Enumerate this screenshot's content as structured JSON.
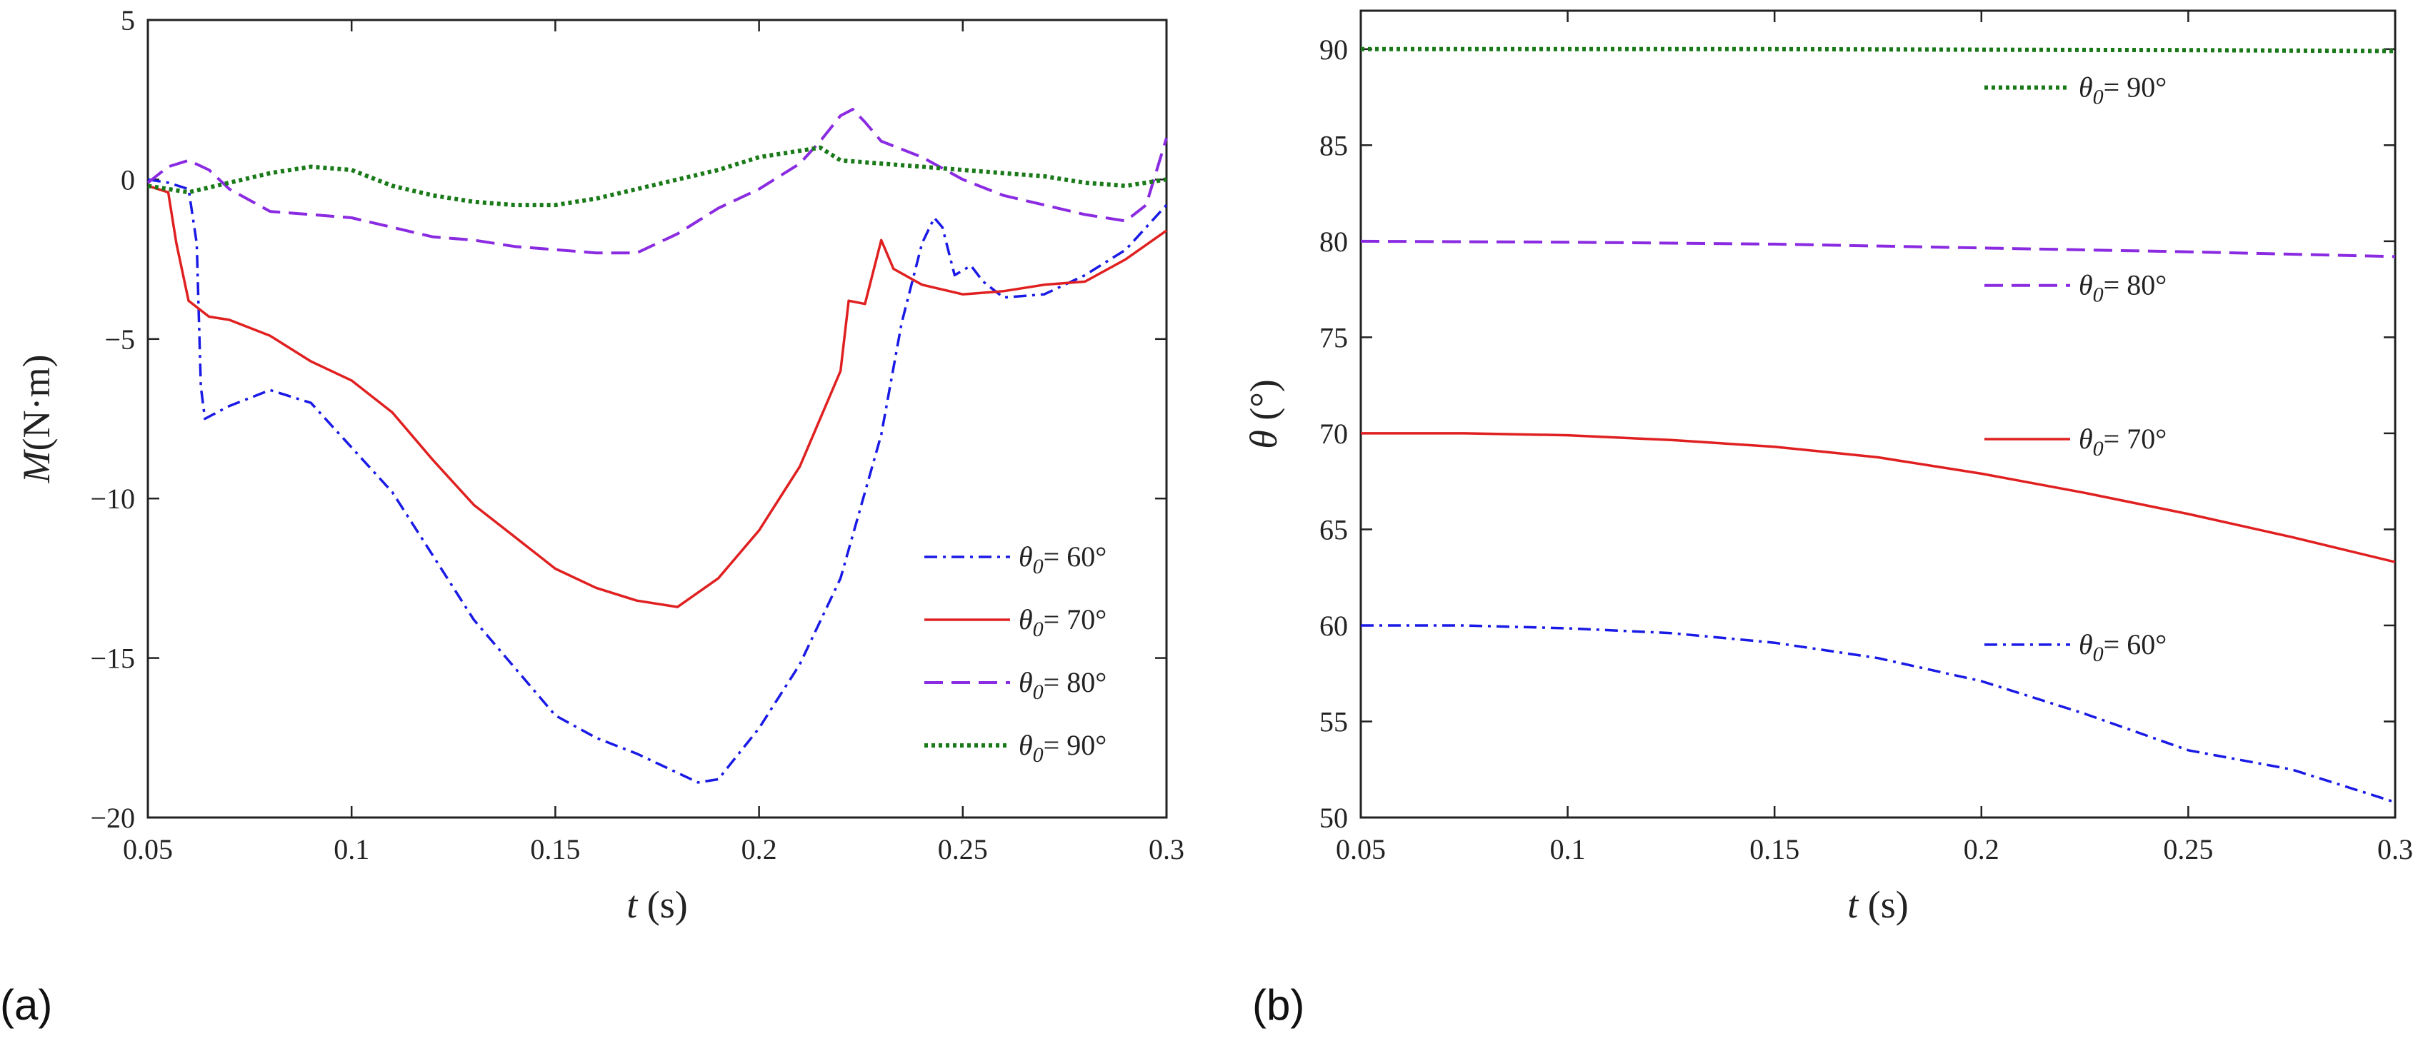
{
  "colors": {
    "s60": "#1a1ae6",
    "s70": "#e02020",
    "s80": "#8a2be2",
    "s90": "#1a7a1a",
    "axis": "#222222"
  },
  "chart_data": [
    {
      "type": "line",
      "panel_label": "(a)",
      "xlabel": {
        "var": "t",
        "unit": " (s)"
      },
      "ylabel": {
        "var": "M",
        "unit": "(N·m)"
      },
      "xlim": [
        0.05,
        0.3
      ],
      "ylim": [
        -20,
        5
      ],
      "xticks": [
        0.05,
        0.1,
        0.15,
        0.2,
        0.25,
        0.3
      ],
      "xtick_labels": [
        "0.05",
        "0.1",
        "0.15",
        "0.2",
        "0.25",
        "0.3"
      ],
      "yticks": [
        -20,
        -15,
        -10,
        -5,
        0,
        5
      ],
      "ytick_labels": [
        "−20",
        "−15",
        "−10",
        "−5",
        "0",
        "5"
      ],
      "legend_position": "lower-right",
      "series": [
        {
          "name": "60°",
          "style": "dashdot",
          "color_key": "s60",
          "x": [
            0.05,
            0.055,
            0.06,
            0.062,
            0.063,
            0.064,
            0.07,
            0.08,
            0.09,
            0.1,
            0.11,
            0.12,
            0.13,
            0.14,
            0.15,
            0.16,
            0.17,
            0.18,
            0.185,
            0.19,
            0.2,
            0.21,
            0.22,
            0.23,
            0.235,
            0.24,
            0.243,
            0.245,
            0.248,
            0.252,
            0.255,
            0.26,
            0.27,
            0.28,
            0.29,
            0.3
          ],
          "y": [
            0,
            -0.1,
            -0.3,
            -2,
            -6.5,
            -7.5,
            -7.1,
            -6.6,
            -7,
            -8.4,
            -9.8,
            -11.8,
            -13.8,
            -15.3,
            -16.8,
            -17.5,
            -18,
            -18.6,
            -18.9,
            -18.8,
            -17.2,
            -15.2,
            -12.5,
            -8,
            -4.5,
            -2,
            -1.2,
            -1.5,
            -3,
            -2.7,
            -3.2,
            -3.7,
            -3.6,
            -3,
            -2.2,
            -0.8
          ]
        },
        {
          "name": "70°",
          "style": "solid",
          "color_key": "s70",
          "x": [
            0.05,
            0.055,
            0.057,
            0.06,
            0.065,
            0.07,
            0.08,
            0.09,
            0.1,
            0.11,
            0.12,
            0.13,
            0.14,
            0.15,
            0.16,
            0.17,
            0.18,
            0.19,
            0.2,
            0.21,
            0.22,
            0.222,
            0.226,
            0.23,
            0.233,
            0.24,
            0.25,
            0.26,
            0.27,
            0.28,
            0.29,
            0.3
          ],
          "y": [
            -0.2,
            -0.4,
            -2,
            -3.8,
            -4.3,
            -4.4,
            -4.9,
            -5.7,
            -6.3,
            -7.3,
            -8.8,
            -10.2,
            -11.2,
            -12.2,
            -12.8,
            -13.2,
            -13.4,
            -12.5,
            -11,
            -9,
            -6,
            -3.8,
            -3.9,
            -1.9,
            -2.8,
            -3.3,
            -3.6,
            -3.5,
            -3.3,
            -3.2,
            -2.5,
            -1.6
          ]
        },
        {
          "name": "80°",
          "style": "dashed",
          "color_key": "s80",
          "x": [
            0.05,
            0.055,
            0.06,
            0.065,
            0.07,
            0.08,
            0.09,
            0.1,
            0.11,
            0.12,
            0.13,
            0.14,
            0.15,
            0.16,
            0.17,
            0.18,
            0.19,
            0.2,
            0.21,
            0.215,
            0.22,
            0.223,
            0.226,
            0.23,
            0.24,
            0.25,
            0.26,
            0.27,
            0.28,
            0.29,
            0.295,
            0.3
          ],
          "y": [
            -0.1,
            0.4,
            0.6,
            0.3,
            -0.3,
            -1,
            -1.1,
            -1.2,
            -1.5,
            -1.8,
            -1.9,
            -2.1,
            -2.2,
            -2.3,
            -2.3,
            -1.7,
            -0.9,
            -0.3,
            0.5,
            1.2,
            2,
            2.2,
            1.8,
            1.2,
            0.7,
            0,
            -0.5,
            -0.8,
            -1.1,
            -1.3,
            -0.8,
            1.3
          ]
        },
        {
          "name": "90°",
          "style": "dotted",
          "color_key": "s90",
          "x": [
            0.05,
            0.06,
            0.07,
            0.08,
            0.09,
            0.1,
            0.11,
            0.12,
            0.13,
            0.14,
            0.15,
            0.16,
            0.17,
            0.18,
            0.19,
            0.2,
            0.21,
            0.215,
            0.22,
            0.23,
            0.24,
            0.25,
            0.26,
            0.27,
            0.28,
            0.29,
            0.3
          ],
          "y": [
            -0.2,
            -0.4,
            -0.1,
            0.2,
            0.4,
            0.3,
            -0.2,
            -0.5,
            -0.7,
            -0.8,
            -0.8,
            -0.6,
            -0.3,
            0,
            0.3,
            0.7,
            0.9,
            1,
            0.6,
            0.5,
            0.4,
            0.3,
            0.2,
            0.1,
            -0.1,
            -0.2,
            0
          ]
        }
      ]
    },
    {
      "type": "line",
      "panel_label": "(b)",
      "xlabel": {
        "var": "t",
        "unit": " (s)"
      },
      "ylabel": {
        "var": "θ",
        "unit": " (°)"
      },
      "xlim": [
        0.05,
        0.3
      ],
      "ylim": [
        50,
        92
      ],
      "xticks": [
        0.05,
        0.1,
        0.15,
        0.2,
        0.25,
        0.3
      ],
      "xtick_labels": [
        "0.05",
        "0.1",
        "0.15",
        "0.2",
        "0.25",
        "0.3"
      ],
      "yticks": [
        50,
        55,
        60,
        65,
        70,
        75,
        80,
        85,
        90
      ],
      "ytick_labels": [
        "50",
        "55",
        "60",
        "65",
        "70",
        "75",
        "80",
        "85",
        "90"
      ],
      "legend_position": "inline-right",
      "series": [
        {
          "name": "90°",
          "style": "dotted",
          "color_key": "s90",
          "x": [
            0.05,
            0.1,
            0.15,
            0.2,
            0.25,
            0.3
          ],
          "y": [
            90,
            90,
            90,
            89.97,
            89.95,
            89.9
          ],
          "label_y": 88
        },
        {
          "name": "80°",
          "style": "dashed",
          "color_key": "s80",
          "x": [
            0.05,
            0.1,
            0.15,
            0.2,
            0.25,
            0.3
          ],
          "y": [
            80,
            79.95,
            79.85,
            79.65,
            79.45,
            79.2
          ],
          "label_y": 77.7
        },
        {
          "name": "70°",
          "style": "solid",
          "color_key": "s70",
          "x": [
            0.05,
            0.075,
            0.1,
            0.125,
            0.15,
            0.175,
            0.2,
            0.225,
            0.25,
            0.275,
            0.3
          ],
          "y": [
            70,
            70,
            69.9,
            69.65,
            69.3,
            68.75,
            67.9,
            66.9,
            65.8,
            64.6,
            63.3
          ],
          "label_y": 69.7
        },
        {
          "name": "60°",
          "style": "dashdot",
          "color_key": "s60",
          "x": [
            0.05,
            0.075,
            0.1,
            0.125,
            0.15,
            0.175,
            0.2,
            0.225,
            0.25,
            0.275,
            0.3
          ],
          "y": [
            60,
            60,
            59.85,
            59.6,
            59.1,
            58.3,
            57.1,
            55.4,
            53.5,
            52.5,
            50.8
          ],
          "label_y": 59
        }
      ]
    }
  ]
}
